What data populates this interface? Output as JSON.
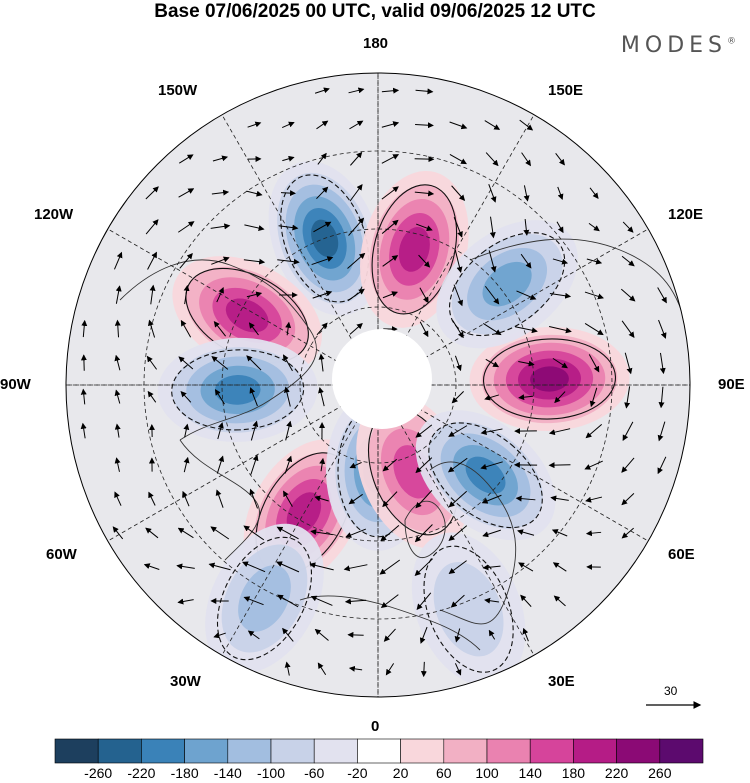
{
  "title": "Base 07/06/2025 00 UTC, valid 09/06/2025 12 UTC",
  "brand": "MODES",
  "brand_mark": "®",
  "longitude_labels": {
    "lon_180": "180",
    "lon_150e": "150E",
    "lon_120e": "120E",
    "lon_90e": "90E",
    "lon_60e": "60E",
    "lon_30e": "30E",
    "lon_0": "0",
    "lon_30w": "30W",
    "lon_60w": "60W",
    "lon_90w": "90W",
    "lon_120w": "120W",
    "lon_150w": "150W"
  },
  "reference_vector": {
    "value": "30"
  },
  "colorbar": {
    "ticks": [
      "-260",
      "-220",
      "-180",
      "-140",
      "-100",
      "-60",
      "-20",
      "20",
      "60",
      "100",
      "140",
      "180",
      "220",
      "260"
    ],
    "colors": [
      "#1d3f5e",
      "#24628f",
      "#3a82b8",
      "#6ea3cf",
      "#a2bee0",
      "#c8d2e8",
      "#e2e2ef",
      "#ffffff",
      "#f9d7dc",
      "#f2b0c4",
      "#ea82b0",
      "#d6449b",
      "#b51c86",
      "#8b0a75",
      "#5c0a6e"
    ]
  },
  "anomalies": [
    {
      "id": "low-n-pacific",
      "lon": -160,
      "colat": 40,
      "value": -220
    },
    {
      "id": "high-bering",
      "lon": 165,
      "colat": 36,
      "value": 200
    },
    {
      "id": "high-w-canada",
      "lon": -118,
      "colat": 38,
      "value": 190
    },
    {
      "id": "low-hudson",
      "lon": -88,
      "colat": 36,
      "value": -200
    },
    {
      "id": "high-w-atlantic",
      "lon": -30,
      "colat": 38,
      "value": 180
    },
    {
      "id": "low-greenland-sea",
      "lon": 0,
      "colat": 22,
      "value": -190
    },
    {
      "id": "high-scandinavia",
      "lon": 22,
      "colat": 24,
      "value": 170
    },
    {
      "id": "low-urals",
      "lon": 50,
      "colat": 36,
      "value": -210
    },
    {
      "id": "high-siberia",
      "lon": 92,
      "colat": 44,
      "value": 240
    },
    {
      "id": "low-e-siberia",
      "lon": 128,
      "colat": 42,
      "value": -160
    },
    {
      "id": "low-atlantic-south",
      "lon": -28,
      "colat": 62,
      "value": -120
    },
    {
      "id": "low-n-africa",
      "lon": 22,
      "colat": 62,
      "value": -90
    }
  ]
}
